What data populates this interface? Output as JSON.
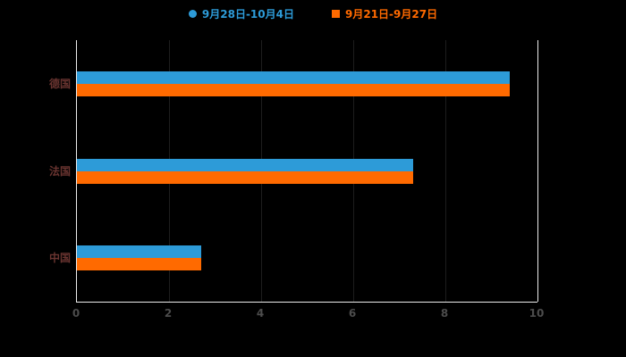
{
  "legend": [
    {
      "label": "9月28日-10月4日",
      "color": "#2d9bd8",
      "marker": "circle"
    },
    {
      "label": "9月21日-9月27日",
      "color": "#ff6a00",
      "marker": "square"
    }
  ],
  "chart_data": {
    "type": "bar",
    "orientation": "horizontal",
    "title": "",
    "categories": [
      "德国",
      "法国",
      "中国"
    ],
    "series": [
      {
        "name": "9月28日-10月4日",
        "color": "#2d9bd8",
        "values": [
          9.4,
          7.3,
          2.7
        ]
      },
      {
        "name": "9月21日-9月27日",
        "color": "#ff6a00",
        "values": [
          9.4,
          7.3,
          2.7
        ]
      }
    ],
    "xlim": [
      0,
      10
    ],
    "xticks": [
      0,
      2,
      4,
      6,
      8,
      10
    ],
    "grid": "vertical-faint",
    "legend_position": "top-center",
    "background_color": "#000000",
    "axis_color": "#ededed",
    "tick_label_color": "#4c4c4c",
    "category_label_color": "#693430"
  }
}
